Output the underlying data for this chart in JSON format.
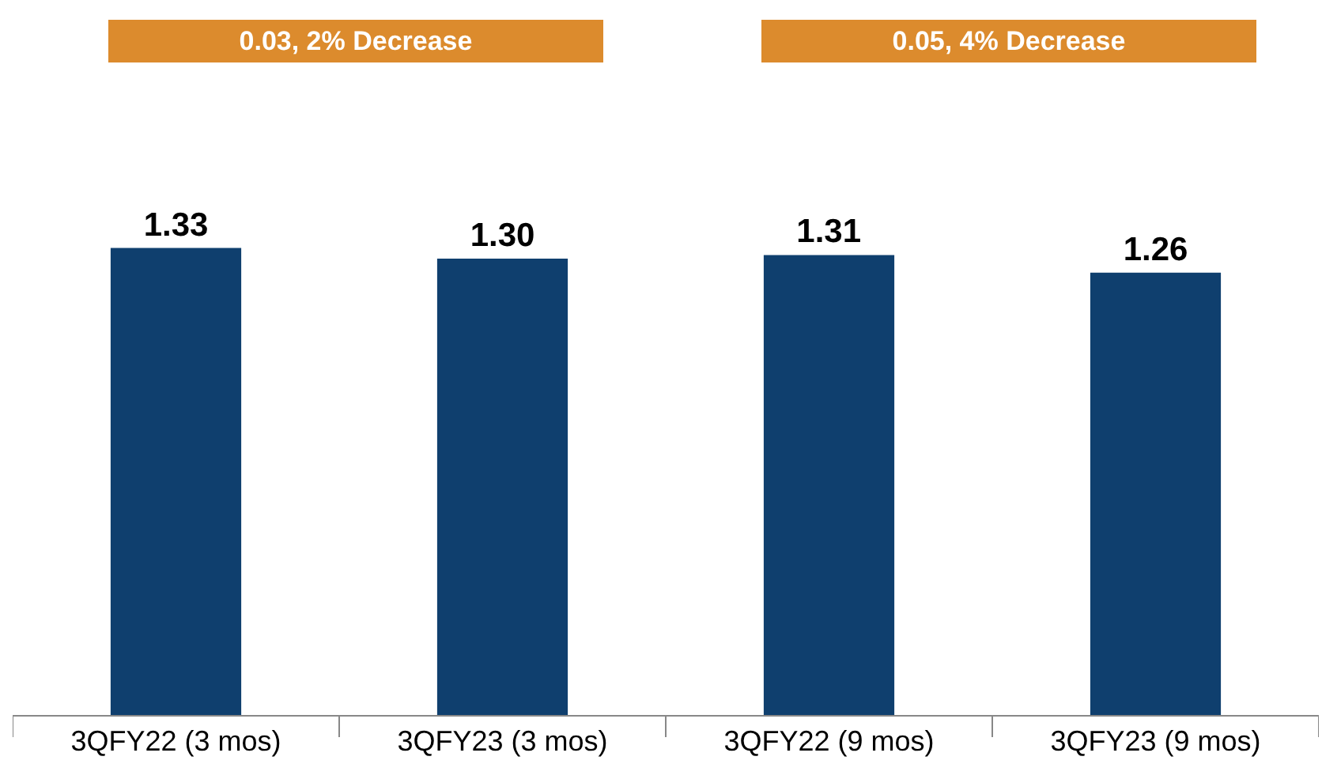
{
  "chart_data": {
    "type": "bar",
    "categories": [
      "3QFY22 (3 mos)",
      "3QFY23 (3 mos)",
      "3QFY22 (9 mos)",
      "3QFY23 (9 mos)"
    ],
    "values": [
      1.33,
      1.3,
      1.31,
      1.26
    ],
    "color": "#0f3f6e",
    "value_labels": [
      "1.33",
      "1.30",
      "1.31",
      "1.26"
    ],
    "annotations": [
      "0.03, 2% Decrease",
      "0.05, 4% Decrease"
    ]
  }
}
